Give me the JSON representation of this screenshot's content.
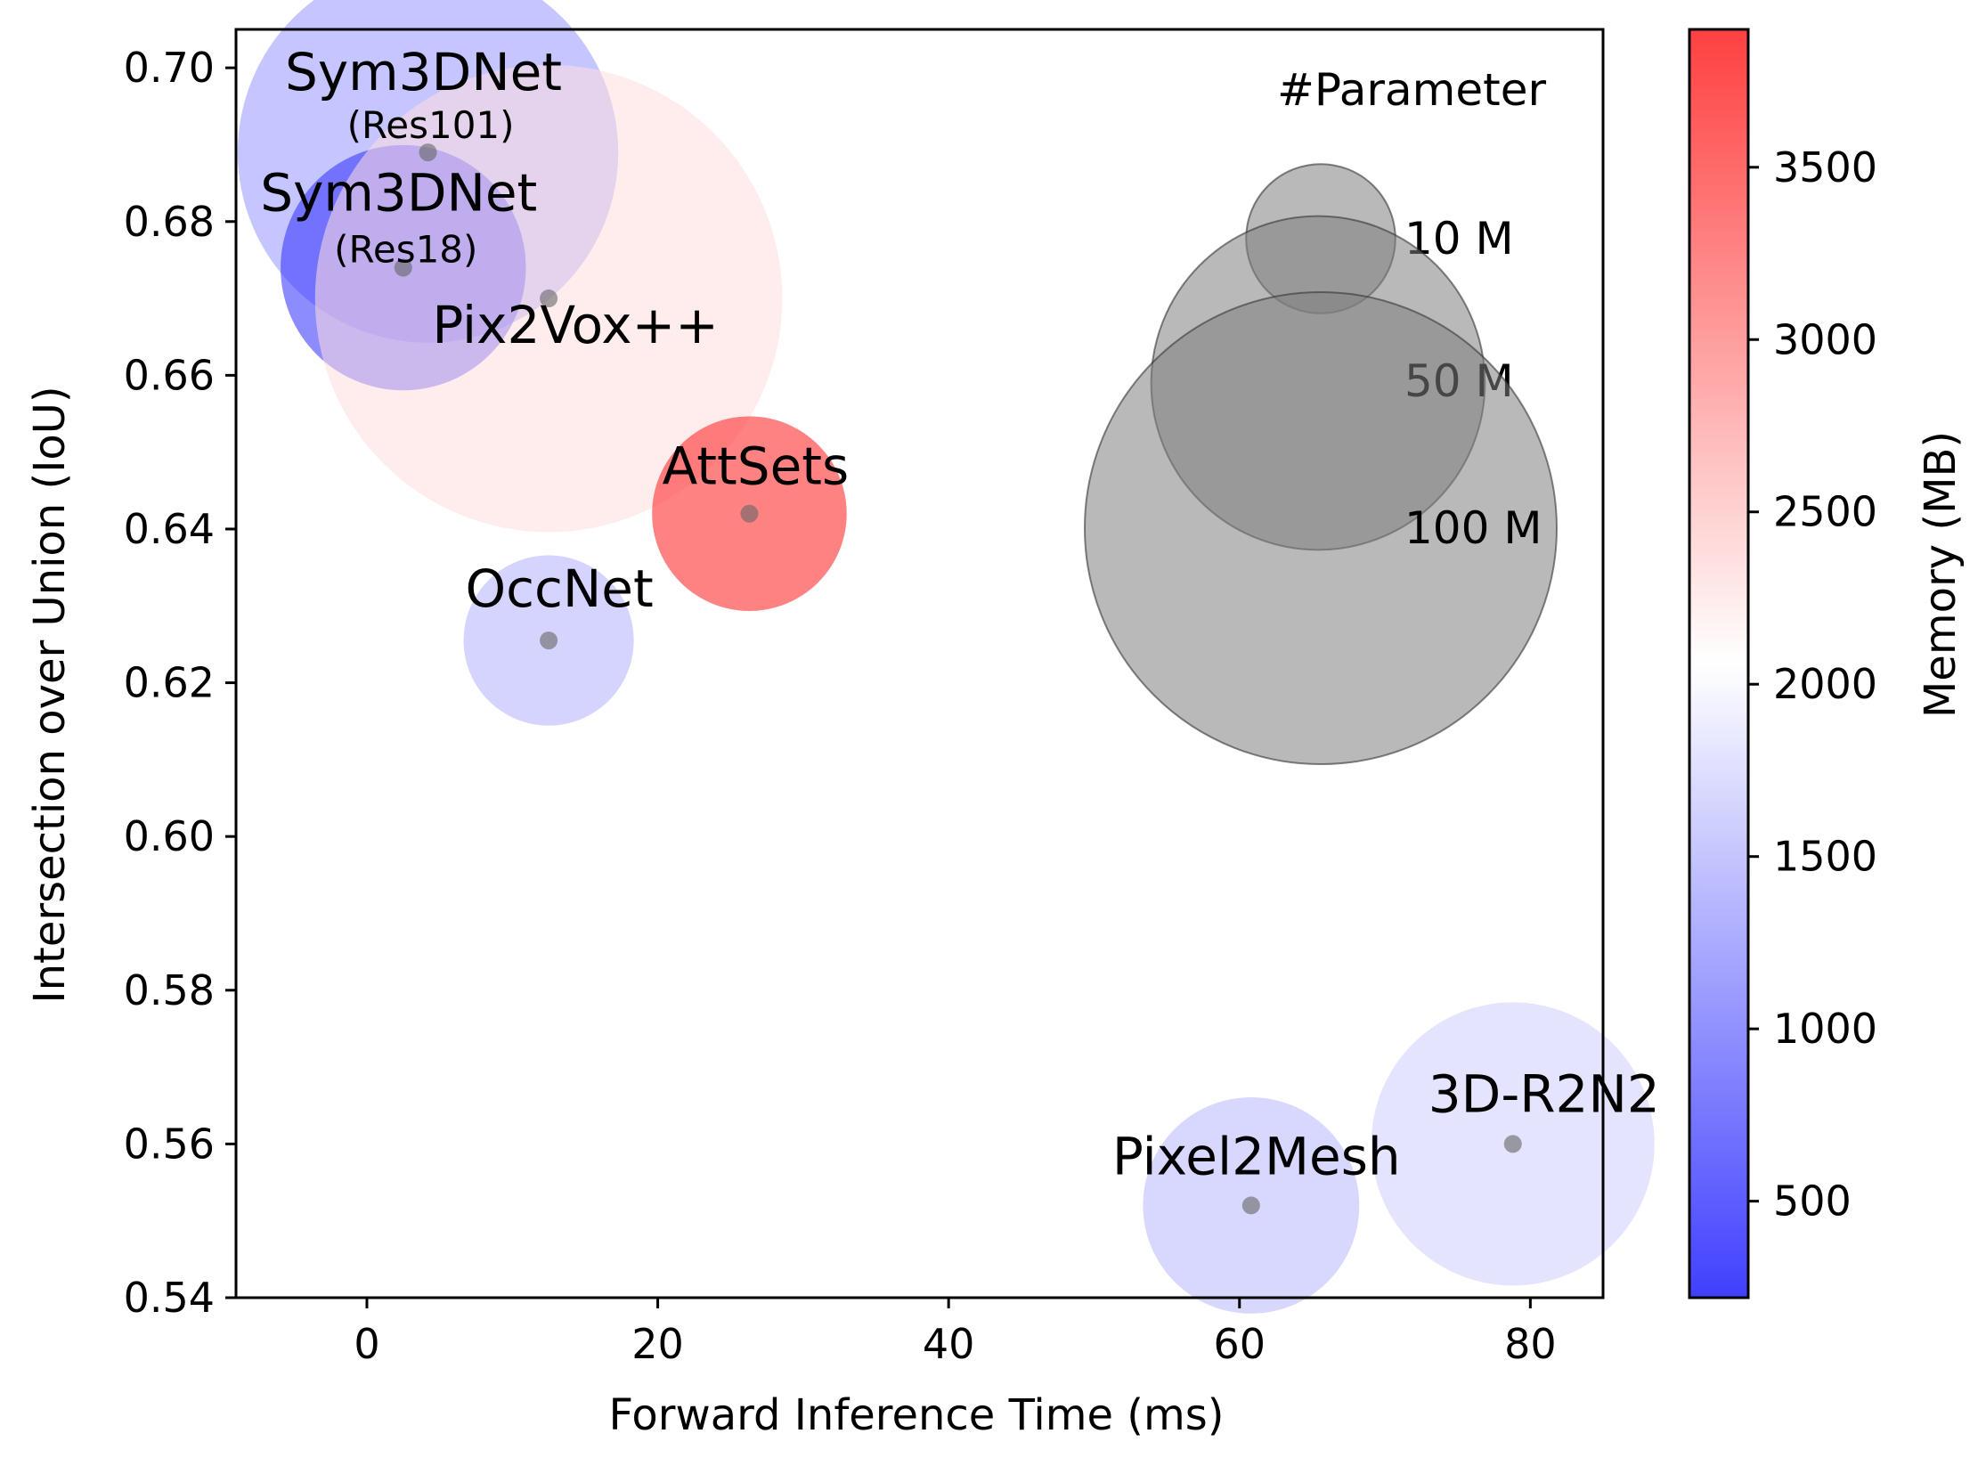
{
  "chart_data": {
    "type": "scatter",
    "xlabel": "Forward Inference Time (ms)",
    "ylabel": "Intersection over Union (IoU)",
    "xlim": [
      -9,
      85
    ],
    "ylim": [
      0.54,
      0.705
    ],
    "xticks": [
      0,
      20,
      40,
      60,
      80
    ],
    "yticks": [
      0.54,
      0.56,
      0.58,
      0.6,
      0.62,
      0.64,
      0.66,
      0.68,
      0.7
    ],
    "ytick_labels": [
      "0.54",
      "0.56",
      "0.58",
      "0.60",
      "0.62",
      "0.64",
      "0.66",
      "0.68",
      "0.70"
    ],
    "grid": false,
    "size_legend": {
      "title": "#Parameter",
      "placement": "top-right",
      "entries": [
        {
          "label": "10 M",
          "params_m": 10
        },
        {
          "label": "50 M",
          "params_m": 50
        },
        {
          "label": "100 M",
          "params_m": 100
        }
      ]
    },
    "colorbar": {
      "label": "Memory (MB)",
      "min": 220,
      "max": 3900,
      "ticks": [
        500,
        1000,
        1500,
        2000,
        2500,
        3000,
        3500
      ],
      "tick_labels": [
        "500",
        "1000",
        "1500",
        "2000",
        "2500",
        "3000",
        "3500"
      ],
      "colormap": "bwr",
      "low_color": "#0000ff",
      "mid_color": "#ffffff",
      "high_color": "#ff0000"
    },
    "points": [
      {
        "name": "Sym3DNet",
        "sublabel": "(Res101)",
        "time_ms": 4.2,
        "iou": 0.689,
        "memory_mb": 1300,
        "params_m": 65
      },
      {
        "name": "Sym3DNet",
        "sublabel": "(Res18)",
        "time_ms": 2.5,
        "iou": 0.674,
        "memory_mb": 550,
        "params_m": 27
      },
      {
        "name": "Pix2Vox++",
        "sublabel": "",
        "time_ms": 12.5,
        "iou": 0.67,
        "memory_mb": 2300,
        "params_m": 98
      },
      {
        "name": "AttSets",
        "sublabel": "",
        "time_ms": 26.3,
        "iou": 0.642,
        "memory_mb": 3700,
        "params_m": 17
      },
      {
        "name": "OccNet",
        "sublabel": "",
        "time_ms": 12.5,
        "iou": 0.6255,
        "memory_mb": 1500,
        "params_m": 13
      },
      {
        "name": "Pixel2Mesh",
        "sublabel": "",
        "time_ms": 60.8,
        "iou": 0.552,
        "memory_mb": 1550,
        "params_m": 21
      },
      {
        "name": "3D-R2N2",
        "sublabel": "",
        "time_ms": 78.8,
        "iou": 0.56,
        "memory_mb": 1700,
        "params_m": 36
      }
    ]
  }
}
